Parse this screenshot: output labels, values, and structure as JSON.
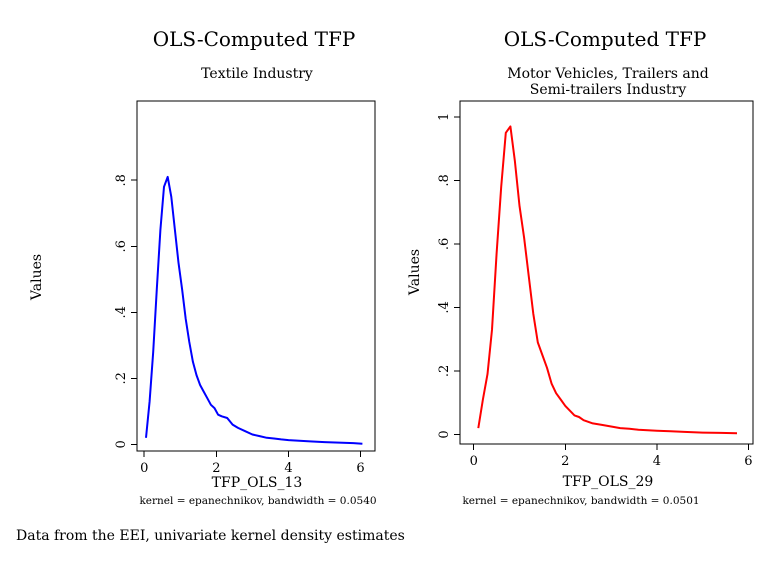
{
  "footnote": "Data from the EEI, univariate kernel density estimates",
  "chart_data": [
    {
      "type": "line",
      "title": "OLS-Computed TFP",
      "subtitle": [
        "Textile Industry"
      ],
      "xlabel": "TFP_OLS_13",
      "ylabel": "Values",
      "note": "kernel = epanechnikov, bandwidth = 0.0540",
      "xlim": [
        -0.2,
        6.4
      ],
      "ylim": [
        -0.02,
        1.04
      ],
      "xticks": [
        {
          "v": 0,
          "label": "0"
        },
        {
          "v": 2,
          "label": "2"
        },
        {
          "v": 4,
          "label": "4"
        },
        {
          "v": 6,
          "label": "6"
        }
      ],
      "yticks": [
        {
          "v": 0,
          "label": "0"
        },
        {
          "v": 0.2,
          "label": ".2"
        },
        {
          "v": 0.4,
          "label": ".4"
        },
        {
          "v": 0.6,
          "label": ".6"
        },
        {
          "v": 0.8,
          "label": ".8"
        }
      ],
      "grid": false,
      "line_color": "#0000ff",
      "series": [
        {
          "x": [
            0.05,
            0.15,
            0.25,
            0.35,
            0.45,
            0.55,
            0.65,
            0.75,
            0.85,
            0.95,
            1.05,
            1.15,
            1.25,
            1.35,
            1.45,
            1.55,
            1.65,
            1.75,
            1.85,
            1.95,
            2.05,
            2.15,
            2.3,
            2.45,
            2.6,
            2.8,
            3.0,
            3.2,
            3.4,
            3.6,
            3.8,
            4.0,
            4.3,
            4.6,
            5.0,
            5.5,
            5.8,
            6.05
          ],
          "y": [
            0.02,
            0.13,
            0.28,
            0.47,
            0.65,
            0.78,
            0.81,
            0.75,
            0.65,
            0.55,
            0.47,
            0.38,
            0.31,
            0.25,
            0.21,
            0.18,
            0.16,
            0.14,
            0.12,
            0.11,
            0.09,
            0.085,
            0.08,
            0.06,
            0.05,
            0.04,
            0.03,
            0.025,
            0.02,
            0.018,
            0.015,
            0.013,
            0.011,
            0.009,
            0.007,
            0.005,
            0.004,
            0.002
          ]
        }
      ]
    },
    {
      "type": "line",
      "title": "OLS-Computed TFP",
      "subtitle": [
        "Motor Vehicles, Trailers and",
        "Semi-trailers Industry"
      ],
      "xlabel": "TFP_OLS_29",
      "ylabel": "Values",
      "note": "kernel = epanechnikov, bandwidth = 0.0501",
      "xlim": [
        -0.3,
        6.1
      ],
      "ylim": [
        -0.03,
        1.05
      ],
      "xticks": [
        {
          "v": 0,
          "label": "0"
        },
        {
          "v": 2,
          "label": "2"
        },
        {
          "v": 4,
          "label": "4"
        },
        {
          "v": 6,
          "label": "6"
        }
      ],
      "yticks": [
        {
          "v": 0,
          "label": "0"
        },
        {
          "v": 0.2,
          "label": ".2"
        },
        {
          "v": 0.4,
          "label": ".4"
        },
        {
          "v": 0.6,
          "label": ".6"
        },
        {
          "v": 0.8,
          "label": ".8"
        },
        {
          "v": 1,
          "label": "1"
        }
      ],
      "grid": false,
      "line_color": "#ff0000",
      "series": [
        {
          "x": [
            0.1,
            0.2,
            0.3,
            0.4,
            0.5,
            0.6,
            0.7,
            0.8,
            0.9,
            1.0,
            1.1,
            1.2,
            1.3,
            1.4,
            1.5,
            1.6,
            1.7,
            1.8,
            1.9,
            2.0,
            2.1,
            2.2,
            2.3,
            2.4,
            2.5,
            2.6,
            2.8,
            3.0,
            3.2,
            3.4,
            3.6,
            3.8,
            4.0,
            4.3,
            4.6,
            5.0,
            5.4,
            5.75
          ],
          "y": [
            0.02,
            0.11,
            0.19,
            0.33,
            0.57,
            0.78,
            0.95,
            0.97,
            0.86,
            0.72,
            0.62,
            0.5,
            0.38,
            0.29,
            0.25,
            0.21,
            0.16,
            0.13,
            0.11,
            0.09,
            0.075,
            0.06,
            0.055,
            0.045,
            0.04,
            0.035,
            0.03,
            0.025,
            0.02,
            0.018,
            0.015,
            0.013,
            0.012,
            0.01,
            0.008,
            0.006,
            0.005,
            0.004
          ]
        }
      ]
    }
  ]
}
